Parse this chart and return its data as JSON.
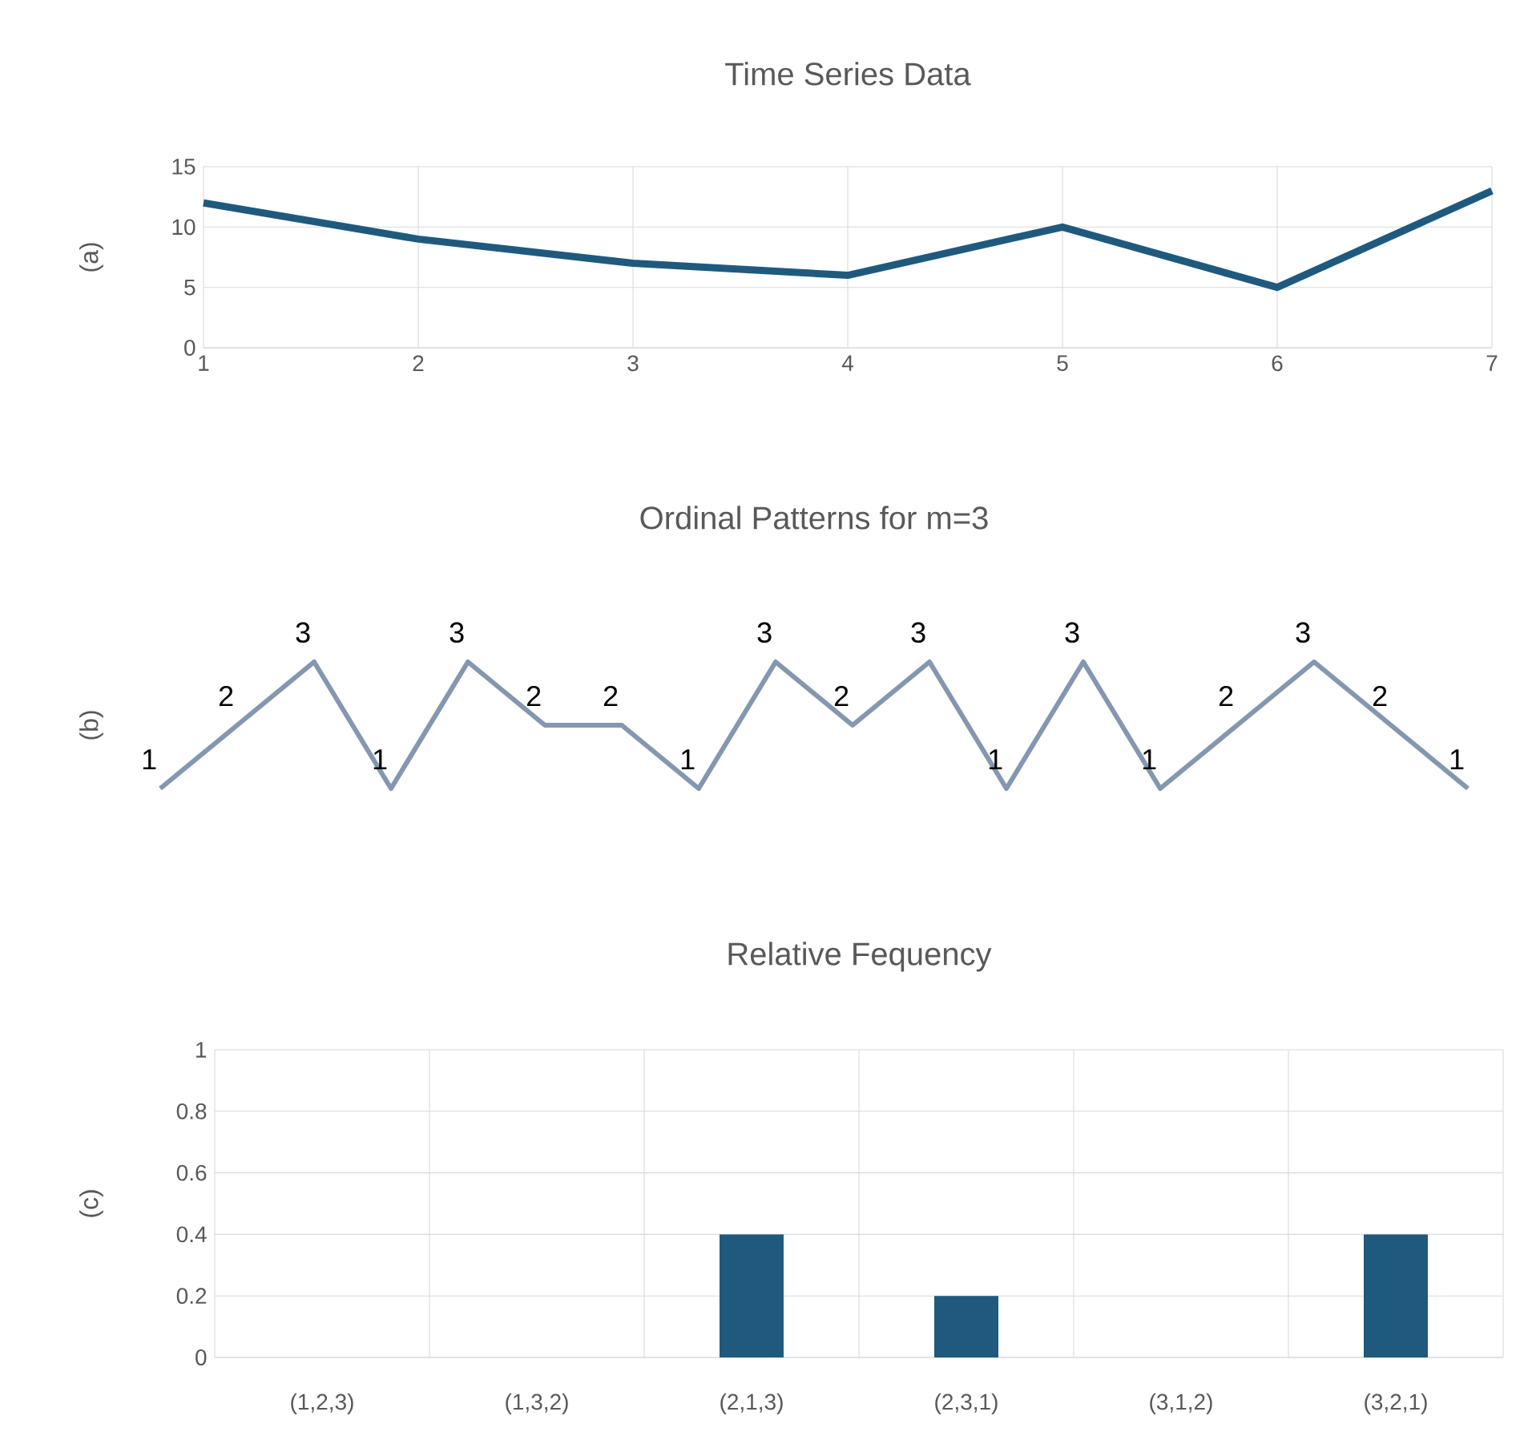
{
  "chart_data": [
    {
      "type": "line",
      "title": "Time Series Data",
      "ylabel": "(a)",
      "x": [
        1,
        2,
        3,
        4,
        5,
        6,
        7
      ],
      "values": [
        12,
        9,
        7,
        6,
        10,
        5,
        13
      ],
      "color": "#1f5a7e",
      "xlim": [
        1,
        7
      ],
      "xticks": [
        1,
        2,
        3,
        4,
        5,
        6,
        7
      ],
      "ylim": [
        0,
        15
      ],
      "yticks": [
        0,
        5,
        10,
        15
      ],
      "grid": true
    },
    {
      "type": "line",
      "title": "Ordinal Patterns for m=3",
      "ylabel": "(b)",
      "categories": [
        null,
        null,
        null,
        null,
        null,
        null,
        null,
        null,
        null,
        null,
        null,
        null,
        null,
        null,
        null,
        null,
        null,
        null
      ],
      "values": [
        1,
        2,
        3,
        1,
        3,
        2,
        2,
        1,
        3,
        2,
        3,
        1,
        3,
        1,
        2,
        3,
        2,
        1
      ],
      "color": "#8497b0",
      "data_labels": true,
      "tick_labels": false
    },
    {
      "type": "bar",
      "title": "Relative Fequency",
      "ylabel": "(c)",
      "categories": [
        "(1,2,3)",
        "(1,3,2)",
        "(2,1,3)",
        "(2,3,1)",
        "(3,1,2)",
        "(3,2,1)"
      ],
      "values": [
        0,
        0,
        0.4,
        0.2,
        0,
        0.4
      ],
      "color": "#1f5a7e",
      "ylim": [
        0,
        1
      ],
      "yticks": [
        0,
        0.2,
        0.4,
        0.6,
        0.8,
        1
      ],
      "grid": true
    }
  ]
}
